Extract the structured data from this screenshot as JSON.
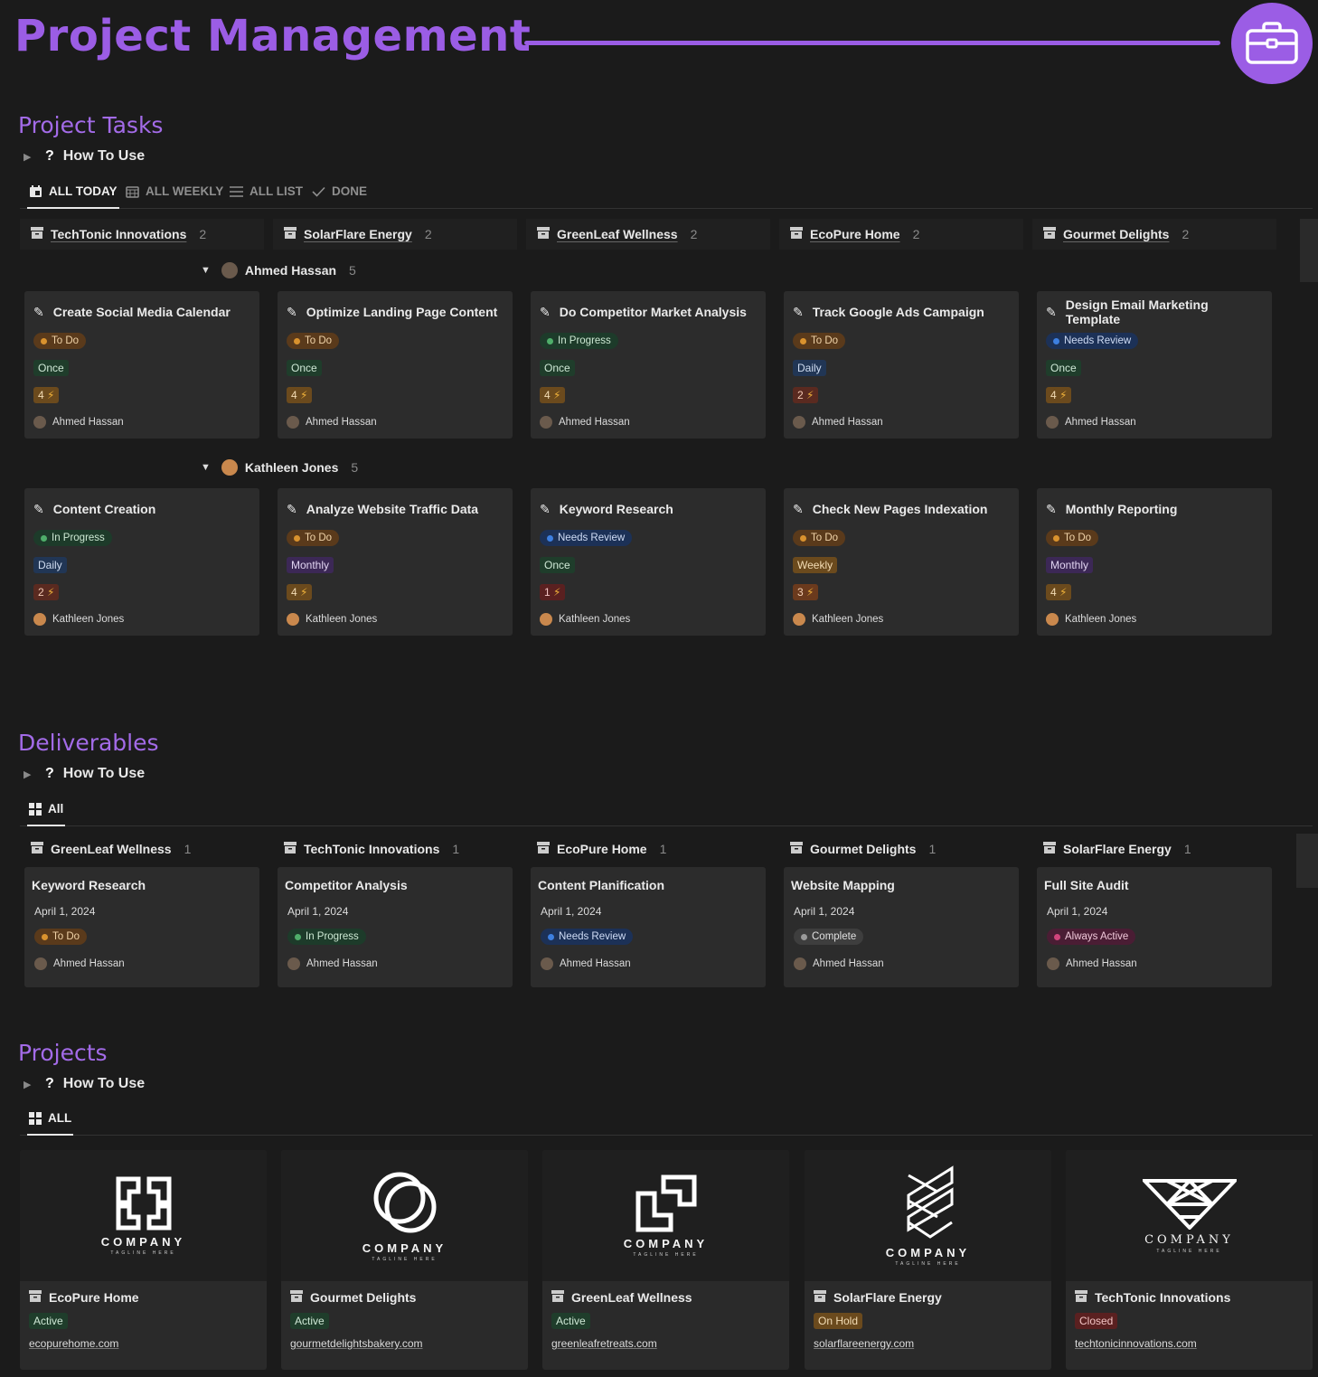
{
  "header": {
    "title": "Project Management",
    "badge_icon": "briefcase-icon"
  },
  "tasks": {
    "title": "Project Tasks",
    "howto": "How To Use",
    "tabs": [
      {
        "label": "ALL TODAY"
      },
      {
        "label": "ALL WEEKLY"
      },
      {
        "label": "ALL LIST"
      },
      {
        "label": "DONE"
      }
    ],
    "groups": [
      {
        "name": "TechTonic Innovations",
        "count": "2"
      },
      {
        "name": "SolarFlare Energy",
        "count": "2"
      },
      {
        "name": "GreenLeaf Wellness",
        "count": "2"
      },
      {
        "name": "EcoPure Home",
        "count": "2"
      },
      {
        "name": "Gourmet Delights",
        "count": "2"
      }
    ],
    "subgroups": [
      {
        "name": "Ahmed Hassan",
        "count": "5",
        "cards": [
          {
            "title": "Create Social Media Calendar",
            "status": "To Do",
            "freq": "Once",
            "points": "4",
            "assignee": "Ahmed Hassan"
          },
          {
            "title": "Optimize Landing Page Content",
            "status": "To Do",
            "freq": "Once",
            "points": "4",
            "assignee": "Ahmed Hassan"
          },
          {
            "title": "Do Competitor Market Analysis",
            "status": "In Progress",
            "freq": "Once",
            "points": "4",
            "assignee": "Ahmed Hassan"
          },
          {
            "title": "Track Google Ads Campaign",
            "status": "To Do",
            "freq": "Daily",
            "points": "2",
            "assignee": "Ahmed Hassan"
          },
          {
            "title": "Design Email Marketing Template",
            "status": "Needs Review",
            "freq": "Once",
            "points": "4",
            "assignee": "Ahmed Hassan"
          }
        ]
      },
      {
        "name": "Kathleen Jones",
        "count": "5",
        "cards": [
          {
            "title": "Content Creation",
            "status": "In Progress",
            "freq": "Daily",
            "points": "2",
            "assignee": "Kathleen Jones"
          },
          {
            "title": "Analyze Website Traffic Data",
            "status": "To Do",
            "freq": "Monthly",
            "points": "4",
            "assignee": "Kathleen Jones"
          },
          {
            "title": "Keyword Research",
            "status": "Needs Review",
            "freq": "Once",
            "points": "1",
            "assignee": "Kathleen Jones"
          },
          {
            "title": "Check New Pages Indexation",
            "status": "To Do",
            "freq": "Weekly",
            "points": "3",
            "assignee": "Kathleen Jones"
          },
          {
            "title": "Monthly Reporting",
            "status": "To Do",
            "freq": "Monthly",
            "points": "4",
            "assignee": "Kathleen Jones"
          }
        ]
      }
    ]
  },
  "deliverables": {
    "title": "Deliverables",
    "howto": "How To Use",
    "tabs": [
      {
        "label": "All"
      }
    ],
    "groups": [
      {
        "name": "GreenLeaf Wellness",
        "count": "1",
        "card": {
          "title": "Keyword Research",
          "date": "April 1, 2024",
          "status": "To Do",
          "assignee": "Ahmed Hassan"
        }
      },
      {
        "name": "TechTonic Innovations",
        "count": "1",
        "card": {
          "title": "Competitor Analysis",
          "date": "April 1, 2024",
          "status": "In Progress",
          "assignee": "Ahmed Hassan"
        }
      },
      {
        "name": "EcoPure Home",
        "count": "1",
        "card": {
          "title": "Content Planification",
          "date": "April 1, 2024",
          "status": "Needs Review",
          "assignee": "Ahmed Hassan"
        }
      },
      {
        "name": "Gourmet Delights",
        "count": "1",
        "card": {
          "title": "Website Mapping",
          "date": "April 1, 2024",
          "status": "Complete",
          "assignee": "Ahmed Hassan"
        }
      },
      {
        "name": "SolarFlare Energy",
        "count": "1",
        "card": {
          "title": "Full Site Audit",
          "date": "April 1, 2024",
          "status": "Always Active",
          "assignee": "Ahmed Hassan"
        }
      }
    ]
  },
  "projects": {
    "title": "Projects",
    "howto": "How To Use",
    "tabs": [
      {
        "label": "ALL"
      }
    ],
    "cards": [
      {
        "name": "EcoPure Home",
        "status": "Active",
        "url": "ecopurehome.com",
        "logo_text": "COMPANY",
        "logo_tagline": "TAGLINE HERE"
      },
      {
        "name": "Gourmet Delights",
        "status": "Active",
        "url": "gourmetdelightsbakery.com",
        "logo_text": "COMPANY",
        "logo_tagline": "TAGLINE HERE"
      },
      {
        "name": "GreenLeaf Wellness",
        "status": "Active",
        "url": "greenleafretreats.com",
        "logo_text": "COMPANY",
        "logo_tagline": "TAGLINE HERE"
      },
      {
        "name": "SolarFlare Energy",
        "status": "On Hold",
        "url": "solarflareenergy.com",
        "logo_text": "COMPANY",
        "logo_tagline": "TAGLINE HERE"
      },
      {
        "name": "TechTonic Innovations",
        "status": "Closed",
        "url": "techtonicinnovations.com",
        "logo_text": "COMPANY",
        "logo_tagline": "TAGLINE HERE"
      }
    ]
  },
  "colors": {
    "accent": "#9b5de5",
    "todo_bg": "#5a3a1b",
    "todo_dot": "#d9922e",
    "progress_bg": "#1d3b2a",
    "progress_dot": "#4fae6a",
    "review_bg": "#1c3157",
    "review_dot": "#3d7fe0",
    "complete_bg": "#3e3e3e",
    "complete_dot": "#9a9a9a",
    "always_bg": "#4a1d34",
    "always_dot": "#d1447c",
    "once_bg": "#1f3d2b",
    "daily_bg": "#213655",
    "monthly_bg": "#3c2856",
    "weekly_bg": "#6b4a1d",
    "points_bg": "#6b4a1d",
    "active_bg": "#1f3d2b",
    "onhold_bg": "#6b4a1d",
    "closed_bg": "#5a2020"
  }
}
